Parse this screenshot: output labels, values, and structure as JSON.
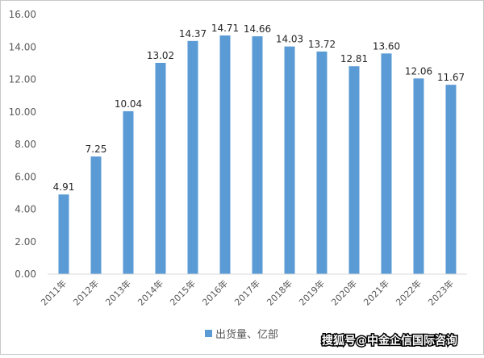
{
  "chart_data": {
    "type": "bar",
    "categories": [
      "2011年",
      "2012年",
      "2013年",
      "2014年",
      "2015年",
      "2016年",
      "2017年",
      "2018年",
      "2019年",
      "2020年",
      "2021年",
      "2022年",
      "2023年"
    ],
    "series": [
      {
        "name": "出货量、亿部",
        "values": [
          4.91,
          7.25,
          10.04,
          13.02,
          14.37,
          14.71,
          14.66,
          14.03,
          13.72,
          12.81,
          13.6,
          12.06,
          11.67
        ],
        "color": "#5b9bd5"
      }
    ],
    "data_labels": [
      "4.91",
      "7.25",
      "10.04",
      "13.02",
      "14.37",
      "14.71",
      "14.66",
      "14.03",
      "13.72",
      "12.81",
      "13.60",
      "12.06",
      "11.67"
    ],
    "yticks": [
      "0.00",
      "2.00",
      "4.00",
      "6.00",
      "8.00",
      "10.00",
      "12.00",
      "14.00",
      "16.00"
    ],
    "ylim": [
      0,
      16
    ],
    "grid": false,
    "legend": {
      "position": "bottom",
      "label": "出货量、亿部"
    },
    "watermark": "搜狐号@中金企信国际咨询"
  }
}
